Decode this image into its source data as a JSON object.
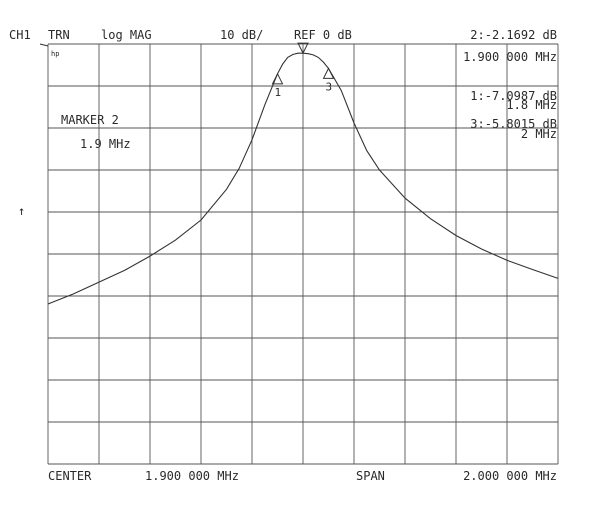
{
  "header": {
    "channel": "CH1",
    "measurement": "TRN",
    "format": "log MAG",
    "scale": "10 dB/",
    "reference": "REF 0 dB",
    "active_marker_readout": "2:-2.1692 dB",
    "active_marker_freq": "1.900 000 MHz"
  },
  "marker_panel": {
    "title": "MARKER 2",
    "value": "1.9 MHz"
  },
  "marker_list": [
    {
      "id": "1",
      "readout": "1:-7.0987 dB",
      "freq": "1.8 MHz"
    },
    {
      "id": "3",
      "readout": "3:-5.8015 dB",
      "freq": "2 MHz"
    }
  ],
  "footer": {
    "center_label": "CENTER",
    "center_value": "1.900 000 MHz",
    "span_label": "SPAN",
    "span_value": "2.000 000 MHz"
  },
  "side": {
    "ref_arrow": "↑",
    "logo": "hp"
  },
  "chart_data": {
    "type": "line",
    "x_unit": "MHz",
    "y_unit": "dB",
    "xlim": [
      0.9,
      2.9
    ],
    "ylim": [
      -100,
      0
    ],
    "x_divisions": 10,
    "y_divisions": 10,
    "grid": true,
    "series": [
      {
        "x": [
          0.9,
          1.0,
          1.1,
          1.2,
          1.3,
          1.4,
          1.5,
          1.6,
          1.65,
          1.7,
          1.75,
          1.8,
          1.82,
          1.84,
          1.86,
          1.88,
          1.9,
          1.92,
          1.94,
          1.96,
          1.98,
          2.0,
          2.05,
          2.1,
          2.15,
          2.2,
          2.3,
          2.4,
          2.5,
          2.6,
          2.7,
          2.8,
          2.9
        ],
        "y": [
          -61.9,
          -59.5,
          -56.7,
          -53.9,
          -50.5,
          -46.7,
          -41.9,
          -34.6,
          -29.6,
          -22.8,
          -14.5,
          -7.1,
          -4.8,
          -3.2,
          -2.5,
          -2.2,
          -2.2,
          -2.3,
          -2.6,
          -3.2,
          -4.3,
          -5.8,
          -11.1,
          -18.8,
          -25.4,
          -30.0,
          -36.7,
          -41.6,
          -45.6,
          -48.8,
          -51.5,
          -53.7,
          -55.8
        ]
      }
    ],
    "markers": [
      {
        "id": "1",
        "x": 1.8,
        "y": -7.0987
      },
      {
        "id": "2",
        "x": 1.9,
        "y": -2.1692
      },
      {
        "id": "3",
        "x": 2.0,
        "y": -5.8015
      }
    ]
  }
}
